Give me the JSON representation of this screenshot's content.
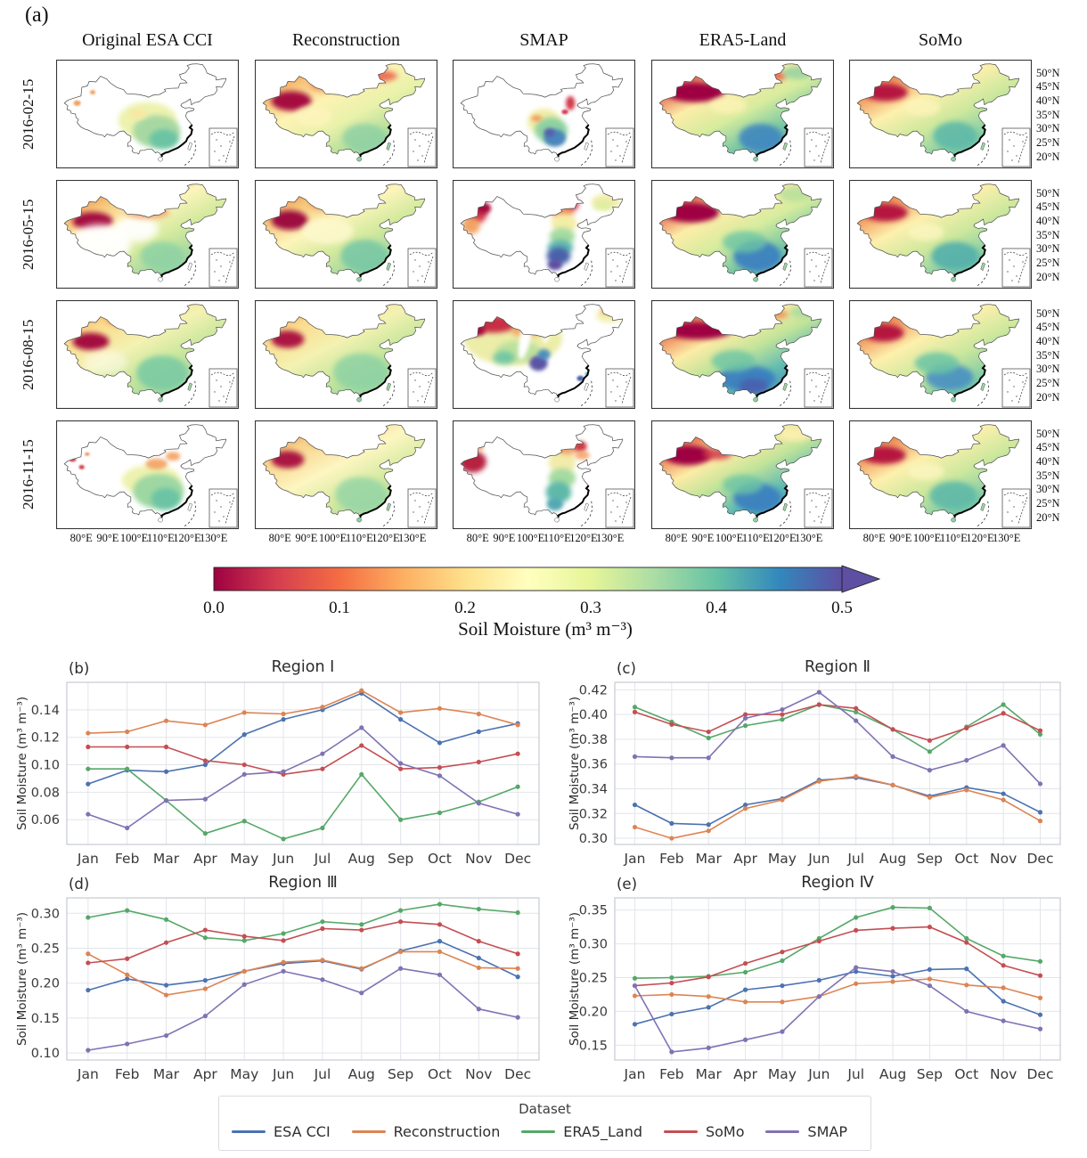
{
  "panel_a": {
    "label": "(a)",
    "column_titles": [
      "Original ESA CCI",
      "Reconstruction",
      "SMAP",
      "ERA5-Land",
      "SoMo"
    ],
    "row_dates": [
      "2016-02-15",
      "2016-05-15",
      "2016-08-15",
      "2016-11-15"
    ],
    "lat_ticks": [
      "50°N",
      "45°N",
      "40°N",
      "35°N",
      "30°N",
      "25°N",
      "20°N"
    ],
    "lon_ticks": [
      "80°E",
      "90°E",
      "100°E",
      "110°E",
      "120°E",
      "130°E"
    ],
    "maps": [
      {
        "date": "2016-02-15",
        "dataset": "Original ESA CCI"
      },
      {
        "date": "2016-02-15",
        "dataset": "Reconstruction"
      },
      {
        "date": "2016-02-15",
        "dataset": "SMAP"
      },
      {
        "date": "2016-02-15",
        "dataset": "ERA5-Land"
      },
      {
        "date": "2016-02-15",
        "dataset": "SoMo"
      },
      {
        "date": "2016-05-15",
        "dataset": "Original ESA CCI"
      },
      {
        "date": "2016-05-15",
        "dataset": "Reconstruction"
      },
      {
        "date": "2016-05-15",
        "dataset": "SMAP"
      },
      {
        "date": "2016-05-15",
        "dataset": "ERA5-Land"
      },
      {
        "date": "2016-05-15",
        "dataset": "SoMo"
      },
      {
        "date": "2016-08-15",
        "dataset": "Original ESA CCI"
      },
      {
        "date": "2016-08-15",
        "dataset": "Reconstruction"
      },
      {
        "date": "2016-08-15",
        "dataset": "SMAP"
      },
      {
        "date": "2016-08-15",
        "dataset": "ERA5-Land"
      },
      {
        "date": "2016-08-15",
        "dataset": "SoMo"
      },
      {
        "date": "2016-11-15",
        "dataset": "Original ESA CCI"
      },
      {
        "date": "2016-11-15",
        "dataset": "Reconstruction"
      },
      {
        "date": "2016-11-15",
        "dataset": "SMAP"
      },
      {
        "date": "2016-11-15",
        "dataset": "ERA5-Land"
      },
      {
        "date": "2016-11-15",
        "dataset": "SoMo"
      }
    ],
    "colorbar": {
      "ticks": [
        "0.0",
        "0.1",
        "0.2",
        "0.3",
        "0.4",
        "0.5"
      ],
      "label": "Soil Moisture (m³ m⁻³)",
      "colors": [
        "#9e0142",
        "#d53e4f",
        "#f46d43",
        "#fdae61",
        "#fee08b",
        "#ffffbf",
        "#e6f598",
        "#abdda4",
        "#66c2a5",
        "#3288bd",
        "#5e4fa2"
      ]
    }
  },
  "chart_data": [
    {
      "type": "line",
      "panel": "(b)",
      "title": "Region I",
      "ylabel": "Soil Moisture (m³ m⁻³)",
      "categories": [
        "Jan",
        "Feb",
        "Mar",
        "Apr",
        "May",
        "Jun",
        "Jul",
        "Aug",
        "Sep",
        "Oct",
        "Nov",
        "Dec"
      ],
      "yticks": [
        0.06,
        0.08,
        0.1,
        0.12,
        0.14
      ],
      "ylim": [
        0.042,
        0.16
      ],
      "series": [
        {
          "name": "ESA CCI",
          "values": [
            0.086,
            0.096,
            0.095,
            0.1,
            0.122,
            0.133,
            0.14,
            0.152,
            0.133,
            0.116,
            0.124,
            0.13
          ]
        },
        {
          "name": "Reconstruction",
          "values": [
            0.123,
            0.124,
            0.132,
            0.129,
            0.138,
            0.137,
            0.142,
            0.154,
            0.138,
            0.141,
            0.137,
            0.129
          ]
        },
        {
          "name": "ERA5_Land",
          "values": [
            0.097,
            0.097,
            0.074,
            0.05,
            0.059,
            0.046,
            0.054,
            0.093,
            0.06,
            0.065,
            0.073,
            0.084
          ]
        },
        {
          "name": "SoMo",
          "values": [
            0.113,
            0.113,
            0.113,
            0.103,
            0.1,
            0.093,
            0.097,
            0.114,
            0.097,
            0.098,
            0.102,
            0.108
          ]
        },
        {
          "name": "SMAP",
          "values": [
            0.064,
            0.054,
            0.074,
            0.075,
            0.093,
            0.095,
            0.108,
            0.127,
            0.101,
            0.092,
            0.072,
            0.064
          ]
        }
      ]
    },
    {
      "type": "line",
      "panel": "(c)",
      "title": "Region Ⅱ",
      "ylabel": "Soil Moisture (m³ m⁻³)",
      "categories": [
        "Jan",
        "Feb",
        "Mar",
        "Apr",
        "May",
        "Jun",
        "Jul",
        "Aug",
        "Sep",
        "Oct",
        "Nov",
        "Dec"
      ],
      "yticks": [
        0.3,
        0.32,
        0.34,
        0.36,
        0.38,
        0.4,
        0.42
      ],
      "ylim": [
        0.295,
        0.426
      ],
      "series": [
        {
          "name": "ESA CCI",
          "values": [
            0.327,
            0.312,
            0.311,
            0.327,
            0.332,
            0.347,
            0.349,
            0.343,
            0.334,
            0.341,
            0.336,
            0.321
          ]
        },
        {
          "name": "Reconstruction",
          "values": [
            0.309,
            0.3,
            0.306,
            0.324,
            0.331,
            0.346,
            0.35,
            0.343,
            0.333,
            0.339,
            0.331,
            0.314
          ]
        },
        {
          "name": "ERA5_Land",
          "values": [
            0.406,
            0.394,
            0.381,
            0.391,
            0.396,
            0.408,
            0.402,
            0.388,
            0.37,
            0.39,
            0.408,
            0.384
          ]
        },
        {
          "name": "SoMo",
          "values": [
            0.402,
            0.392,
            0.386,
            0.4,
            0.4,
            0.408,
            0.405,
            0.388,
            0.379,
            0.389,
            0.401,
            0.387
          ]
        },
        {
          "name": "SMAP",
          "values": [
            0.366,
            0.365,
            0.365,
            0.397,
            0.404,
            0.418,
            0.395,
            0.366,
            0.355,
            0.363,
            0.375,
            0.344
          ]
        }
      ]
    },
    {
      "type": "line",
      "panel": "(d)",
      "title": "Region Ⅲ",
      "ylabel": "Soil Moisture (m³ m⁻³)",
      "categories": [
        "Jan",
        "Feb",
        "Mar",
        "Apr",
        "May",
        "Jun",
        "Jul",
        "Aug",
        "Sep",
        "Oct",
        "Nov",
        "Dec"
      ],
      "yticks": [
        0.1,
        0.15,
        0.2,
        0.25,
        0.3
      ],
      "ylim": [
        0.09,
        0.322
      ],
      "series": [
        {
          "name": "ESA CCI",
          "values": [
            0.19,
            0.206,
            0.197,
            0.204,
            0.217,
            0.228,
            0.232,
            0.22,
            0.246,
            0.26,
            0.236,
            0.209
          ]
        },
        {
          "name": "Reconstruction",
          "values": [
            0.242,
            0.212,
            0.183,
            0.192,
            0.217,
            0.23,
            0.233,
            0.221,
            0.245,
            0.245,
            0.222,
            0.221
          ]
        },
        {
          "name": "ERA5_Land",
          "values": [
            0.294,
            0.304,
            0.291,
            0.265,
            0.261,
            0.271,
            0.288,
            0.284,
            0.304,
            0.313,
            0.306,
            0.301
          ]
        },
        {
          "name": "SoMo",
          "values": [
            0.229,
            0.235,
            0.258,
            0.276,
            0.267,
            0.261,
            0.278,
            0.276,
            0.288,
            0.284,
            0.26,
            0.242
          ]
        },
        {
          "name": "SMAP",
          "values": [
            0.104,
            0.113,
            0.125,
            0.153,
            0.198,
            0.217,
            0.205,
            0.186,
            0.221,
            0.212,
            0.163,
            0.151
          ]
        }
      ]
    },
    {
      "type": "line",
      "panel": "(e)",
      "title": "Region Ⅳ",
      "ylabel": "Soil Moisture (m³ m⁻³)",
      "categories": [
        "Jan",
        "Feb",
        "Mar",
        "Apr",
        "May",
        "Jun",
        "Jul",
        "Aug",
        "Sep",
        "Oct",
        "Nov",
        "Dec"
      ],
      "yticks": [
        0.15,
        0.2,
        0.25,
        0.3,
        0.35
      ],
      "ylim": [
        0.128,
        0.368
      ],
      "series": [
        {
          "name": "ESA CCI",
          "values": [
            0.181,
            0.196,
            0.206,
            0.232,
            0.238,
            0.246,
            0.259,
            0.252,
            0.262,
            0.263,
            0.215,
            0.195
          ]
        },
        {
          "name": "Reconstruction",
          "values": [
            0.223,
            0.225,
            0.222,
            0.214,
            0.214,
            0.222,
            0.241,
            0.244,
            0.248,
            0.239,
            0.235,
            0.22
          ]
        },
        {
          "name": "ERA5_Land",
          "values": [
            0.249,
            0.25,
            0.252,
            0.258,
            0.275,
            0.308,
            0.339,
            0.354,
            0.353,
            0.308,
            0.282,
            0.274
          ]
        },
        {
          "name": "SoMo",
          "values": [
            0.238,
            0.242,
            0.251,
            0.271,
            0.288,
            0.304,
            0.32,
            0.323,
            0.325,
            0.302,
            0.268,
            0.253
          ]
        },
        {
          "name": "SMAP",
          "values": [
            0.238,
            0.14,
            0.146,
            0.158,
            0.17,
            0.222,
            0.265,
            0.259,
            0.238,
            0.2,
            0.186,
            0.174
          ]
        }
      ]
    }
  ],
  "legend": {
    "title": "Dataset",
    "entries": [
      {
        "label": "ESA CCI",
        "color": "#4C72B0"
      },
      {
        "label": "Reconstruction",
        "color": "#DD8452"
      },
      {
        "label": "ERA5_Land",
        "color": "#55A868"
      },
      {
        "label": "SoMo",
        "color": "#C44E52"
      },
      {
        "label": "SMAP",
        "color": "#8172B3"
      }
    ]
  }
}
